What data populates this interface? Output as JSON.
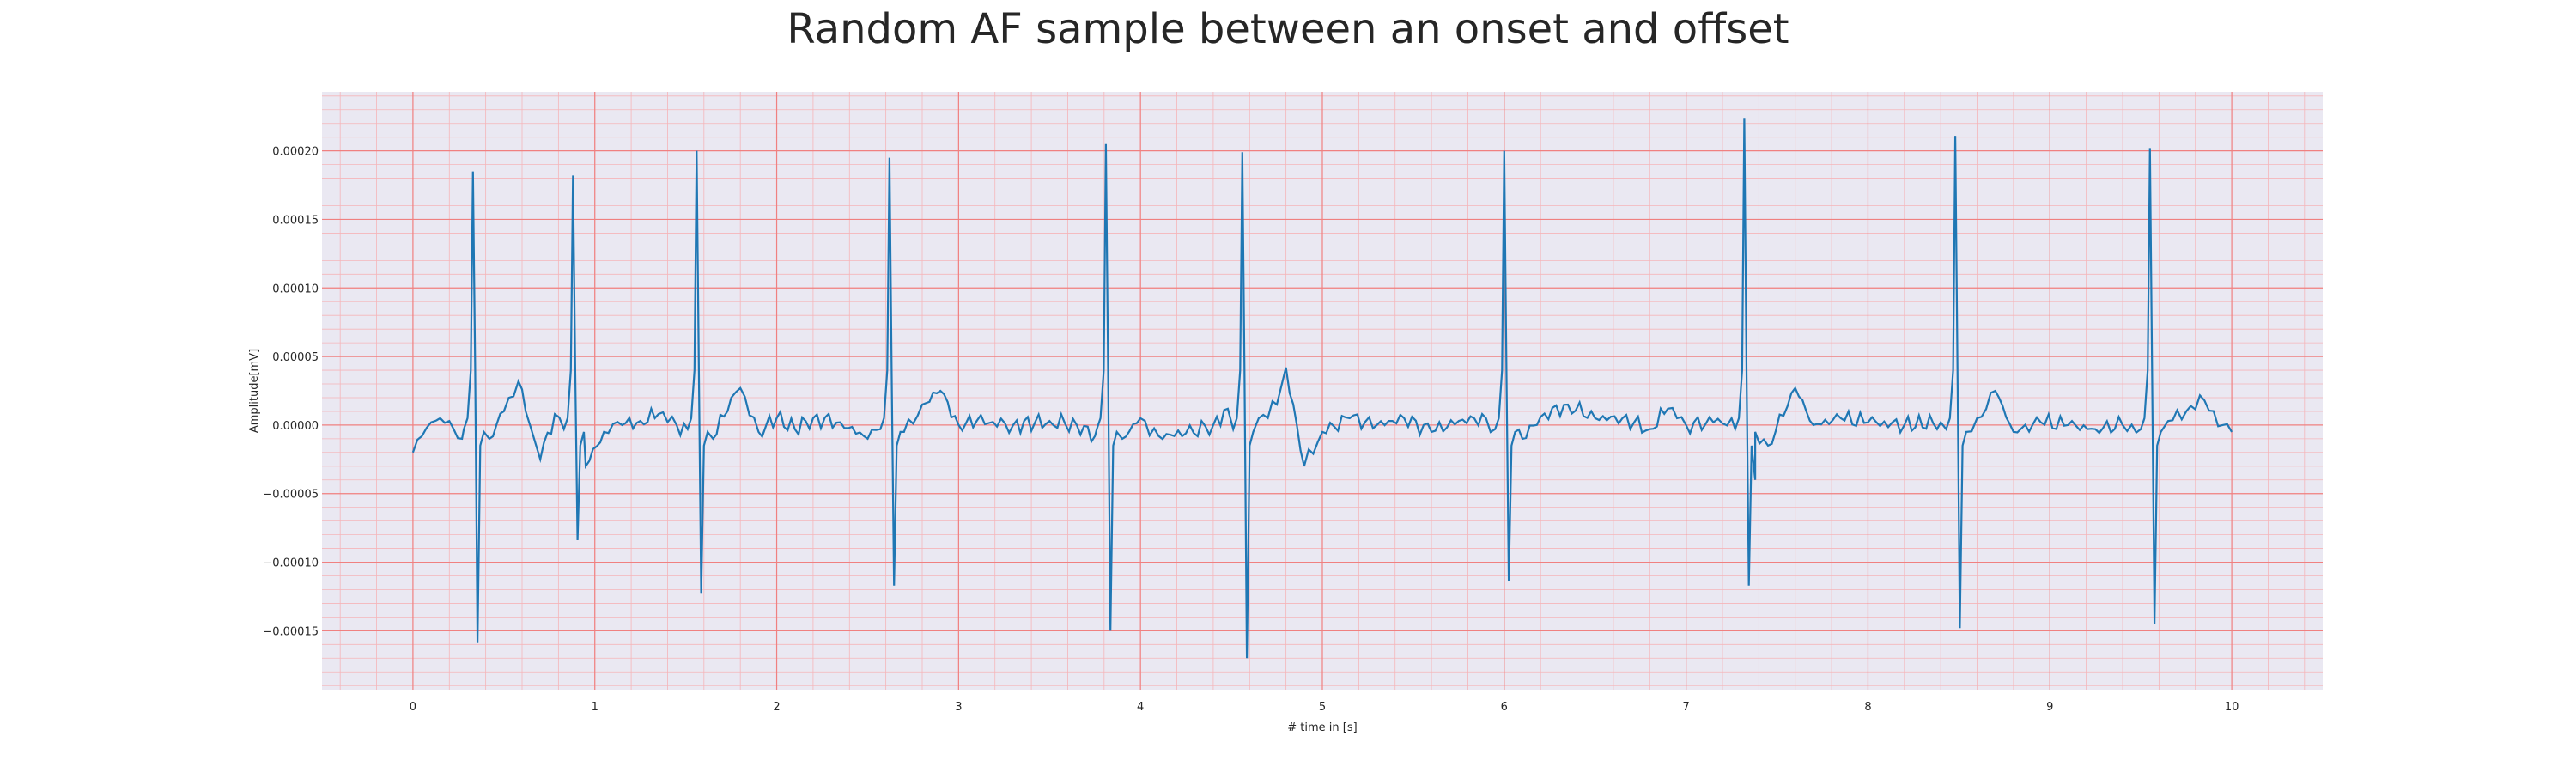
{
  "chart_data": {
    "type": "line",
    "title": "Random AF sample between an onset and offset",
    "xlabel": "# time in [s]",
    "ylabel": "Amplitude[mV]",
    "xlim": [
      -0.5,
      10.5
    ],
    "ylim": [
      -0.000193,
      0.000243
    ],
    "xticks": [
      0,
      1,
      2,
      3,
      4,
      5,
      6,
      7,
      8,
      9,
      10
    ],
    "xtick_labels": [
      "0",
      "1",
      "2",
      "3",
      "4",
      "5",
      "6",
      "7",
      "8",
      "9",
      "10"
    ],
    "yticks": [
      -0.00015,
      -0.0001,
      -5e-05,
      0.0,
      5e-05,
      0.0001,
      0.00015,
      0.0002
    ],
    "ytick_labels": [
      "−0.00015",
      "−0.00010",
      "−0.00005",
      "0.00000",
      "0.00005",
      "0.00010",
      "0.00015",
      "0.00020"
    ],
    "grid": true,
    "minor_grid": true,
    "colors": {
      "line": "#1f77b4",
      "plot_background": "#eae8f2",
      "major_grid": "#f08080",
      "minor_grid": "#f5b5b9",
      "text": "#262626"
    },
    "series": [
      {
        "qrs_complexes": [
          {
            "t": 0.33,
            "r_peak": 0.000185,
            "s_trough": -0.000159
          },
          {
            "t": 0.88,
            "r_peak": 0.000182,
            "s_trough": -8.4e-05
          },
          {
            "t": 1.56,
            "r_peak": 0.0002,
            "s_trough": -0.000123
          },
          {
            "t": 2.62,
            "r_peak": 0.000195,
            "s_trough": -0.000117
          },
          {
            "t": 3.81,
            "r_peak": 0.000205,
            "s_trough": -0.00015
          },
          {
            "t": 4.56,
            "r_peak": 0.000199,
            "s_trough": -0.00017
          },
          {
            "t": 6.0,
            "r_peak": 0.0002,
            "s_trough": -0.000114
          },
          {
            "t": 7.32,
            "r_peak": 0.000224,
            "s_trough": -0.000117
          },
          {
            "t": 8.48,
            "r_peak": 0.000211,
            "s_trough": -0.000148
          },
          {
            "t": 9.55,
            "r_peak": 0.000202,
            "s_trough": -0.000145
          }
        ],
        "baseline_points": [
          [
            0.0,
            -2e-05
          ],
          [
            0.05,
            -8e-06
          ],
          [
            0.1,
            2e-06
          ],
          [
            0.15,
            5e-06
          ],
          [
            0.2,
            3e-06
          ],
          [
            0.27,
            -1e-05
          ],
          [
            0.42,
            -1e-05
          ],
          [
            0.5,
            1e-05
          ],
          [
            0.58,
            3.2e-05
          ],
          [
            0.62,
            1e-05
          ],
          [
            0.7,
            -2.5e-05
          ],
          [
            0.78,
            8e-06
          ],
          [
            0.95,
            -3e-05
          ],
          [
            1.05,
            -5e-06
          ],
          [
            1.15,
            0.0
          ],
          [
            1.25,
            3e-06
          ],
          [
            1.35,
            8e-06
          ],
          [
            1.45,
            0.0
          ],
          [
            1.65,
            -1e-05
          ],
          [
            1.75,
            2e-05
          ],
          [
            1.8,
            2.7e-05
          ],
          [
            1.9,
            -5e-06
          ],
          [
            2.0,
            5e-06
          ],
          [
            2.1,
            -3e-06
          ],
          [
            2.2,
            5e-06
          ],
          [
            2.35,
            2e-06
          ],
          [
            2.5,
            -1e-05
          ],
          [
            2.7,
            -5e-06
          ],
          [
            2.8,
            1.5e-05
          ],
          [
            2.9,
            2.5e-05
          ],
          [
            3.0,
            0.0
          ],
          [
            3.1,
            3e-06
          ],
          [
            3.3,
            0.0
          ],
          [
            3.5,
            3e-06
          ],
          [
            3.65,
            0.0
          ],
          [
            3.75,
            -8e-06
          ],
          [
            3.9,
            -1e-05
          ],
          [
            4.0,
            5e-06
          ],
          [
            4.1,
            -8e-06
          ],
          [
            4.25,
            -6e-06
          ],
          [
            4.4,
            0.0
          ],
          [
            4.48,
            1.2e-05
          ],
          [
            4.65,
            5e-06
          ],
          [
            4.75,
            1.5e-05
          ],
          [
            4.8,
            4.2e-05
          ],
          [
            4.86,
            0.0
          ],
          [
            4.9,
            -3e-05
          ],
          [
            5.0,
            -5e-06
          ],
          [
            5.15,
            5e-06
          ],
          [
            5.3,
            0.0
          ],
          [
            5.45,
            5e-06
          ],
          [
            5.6,
            -5e-06
          ],
          [
            5.75,
            3e-06
          ],
          [
            5.9,
            5e-06
          ],
          [
            6.1,
            -1e-05
          ],
          [
            6.2,
            6e-06
          ],
          [
            6.35,
            1.5e-05
          ],
          [
            6.5,
            5e-06
          ],
          [
            6.65,
            5e-06
          ],
          [
            6.8,
            -3e-06
          ],
          [
            6.9,
            1.2e-05
          ],
          [
            7.0,
            0.0
          ],
          [
            7.15,
            2e-06
          ],
          [
            7.25,
            5e-06
          ],
          [
            7.38,
            -4e-05
          ],
          [
            7.45,
            -1.5e-05
          ],
          [
            7.6,
            2.7e-05
          ],
          [
            7.7,
            0.0
          ],
          [
            7.85,
            5e-06
          ],
          [
            8.0,
            2e-06
          ],
          [
            8.2,
            0.0
          ],
          [
            8.4,
            2e-06
          ],
          [
            8.6,
            5e-06
          ],
          [
            8.7,
            2.5e-05
          ],
          [
            8.8,
            -5e-06
          ],
          [
            8.95,
            2e-06
          ],
          [
            9.1,
            0.0
          ],
          [
            9.25,
            -3e-06
          ],
          [
            9.4,
            0.0
          ],
          [
            9.65,
            3e-06
          ],
          [
            9.75,
            1e-05
          ],
          [
            9.85,
            1.8e-05
          ],
          [
            9.95,
            0.0
          ],
          [
            10.0,
            -5e-06
          ]
        ]
      }
    ]
  }
}
